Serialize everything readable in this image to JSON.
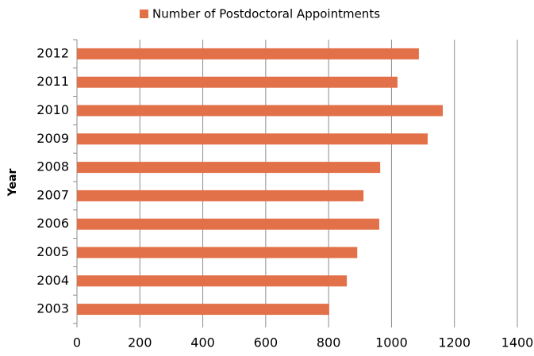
{
  "chart_data": {
    "type": "hbar",
    "y_label": "Year",
    "categories": [
      "2003",
      "2004",
      "2005",
      "2006",
      "2007",
      "2008",
      "2009",
      "2010",
      "2011",
      "2012"
    ],
    "series": [
      {
        "name": "Number of Postdoctoral Appointments",
        "color": "#e2714a",
        "values": [
          802,
          858,
          891,
          961,
          911,
          964,
          1115,
          1163,
          1019,
          1087
        ]
      }
    ],
    "xlim": [
      0,
      1400
    ],
    "xticks": [
      0,
      200,
      400,
      600,
      800,
      1000,
      1200,
      1400
    ],
    "grid": true,
    "legend": "top"
  }
}
